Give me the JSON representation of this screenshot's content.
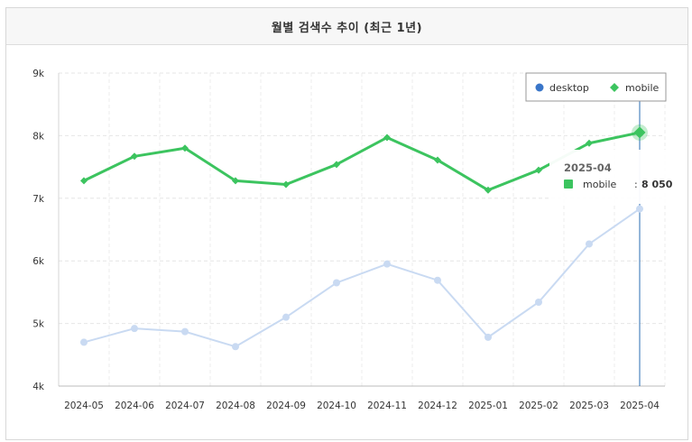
{
  "panel": {
    "title": "월별 검색수 추이 (최근 1년)"
  },
  "chart_data": {
    "type": "line",
    "title": "월별 검색수 추이 (최근 1년)",
    "categories": [
      "2024-05",
      "2024-06",
      "2024-07",
      "2024-08",
      "2024-09",
      "2024-10",
      "2024-11",
      "2024-12",
      "2025-01",
      "2025-02",
      "2025-03",
      "2025-04"
    ],
    "series": [
      {
        "name": "desktop",
        "color": "#3a76c9",
        "dimmed_color": "#c9daf2",
        "marker": "circle",
        "values": [
          4700,
          4920,
          4870,
          4630,
          5100,
          5650,
          5950,
          5690,
          4780,
          5340,
          6270,
          6830
        ]
      },
      {
        "name": "mobile",
        "color": "#3cc45f",
        "marker": "diamond",
        "values": [
          7280,
          7670,
          7800,
          7280,
          7220,
          7540,
          7970,
          7610,
          7130,
          7450,
          7880,
          8050
        ]
      }
    ],
    "y_ticks": [
      "4k",
      "5k",
      "6k",
      "7k",
      "8k",
      "9k"
    ],
    "ylim": [
      4000,
      9000
    ],
    "grid": true,
    "legend": {
      "position": "top-right",
      "items": [
        "desktop",
        "mobile"
      ]
    },
    "tooltip": {
      "category": "2025-04",
      "series": "mobile",
      "sep": ":",
      "value_text": "8 050"
    }
  }
}
